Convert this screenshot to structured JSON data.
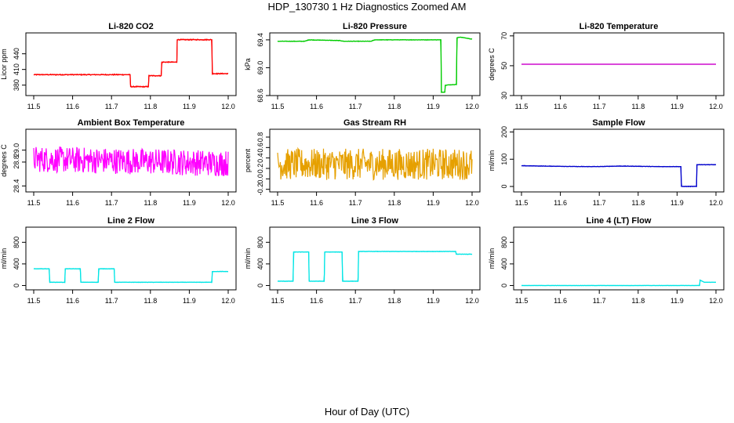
{
  "title": "HDP_130730  1 Hz Diagnostics Zoomed AM",
  "xlabel": "Hour of Day (UTC)",
  "chart_data": [
    {
      "type": "line",
      "title": "Li-820 CO2",
      "ylabel": "Licor ppm",
      "xlim": [
        11.5,
        12.0
      ],
      "ylim": [
        360,
        480
      ],
      "xticks": [
        "11.5",
        "11.6",
        "11.7",
        "11.8",
        "11.9",
        "12.0"
      ],
      "yticks": [
        "380",
        "410",
        "440"
      ],
      "ytick_values": [
        380,
        410,
        440
      ],
      "color": "#ff0000",
      "noise": 1,
      "series": [
        {
          "x": [
            11.5,
            11.748,
            11.749,
            11.795,
            11.796,
            11.828,
            11.829,
            11.868,
            11.869,
            11.958,
            11.959,
            12.0
          ],
          "y": [
            400,
            400,
            377,
            377,
            398,
            398,
            424,
            424,
            467,
            467,
            402,
            402
          ]
        }
      ]
    },
    {
      "type": "line",
      "title": "Li-820 Pressure",
      "ylabel": "kPa",
      "xlim": [
        11.5,
        12.0
      ],
      "ylim": [
        68.6,
        69.5
      ],
      "xticks": [
        "11.5",
        "11.6",
        "11.7",
        "11.8",
        "11.9",
        "12.0"
      ],
      "yticks": [
        "68.6",
        "69.0",
        "69.4"
      ],
      "ytick_values": [
        68.6,
        69.0,
        69.4
      ],
      "color": "#00cc00",
      "noise": 0.004,
      "series": [
        {
          "x": [
            11.5,
            11.57,
            11.58,
            11.66,
            11.67,
            11.74,
            11.75,
            11.92,
            11.921,
            11.93,
            11.931,
            11.96,
            11.961,
            11.97,
            12.0
          ],
          "y": [
            69.38,
            69.38,
            69.4,
            69.39,
            69.38,
            69.38,
            69.4,
            69.4,
            68.65,
            68.65,
            68.75,
            68.76,
            69.43,
            69.44,
            69.41
          ]
        }
      ]
    },
    {
      "type": "line",
      "title": "Li-820 Temperature",
      "ylabel": "degrees C",
      "xlim": [
        11.5,
        12.0
      ],
      "ylim": [
        30,
        72
      ],
      "xticks": [
        "11.5",
        "11.6",
        "11.7",
        "11.8",
        "11.9",
        "12.0"
      ],
      "yticks": [
        "30",
        "50",
        "70"
      ],
      "ytick_values": [
        30,
        50,
        70
      ],
      "color": "#cc00cc",
      "noise": 0,
      "series": [
        {
          "x": [
            11.5,
            12.0
          ],
          "y": [
            51,
            51
          ]
        }
      ]
    },
    {
      "type": "line",
      "title": "Ambient Box Temperature",
      "ylabel": "degrees C",
      "xlim": [
        11.5,
        12.0
      ],
      "ylim": [
        28.3,
        29.35
      ],
      "xticks": [
        "11.5",
        "11.6",
        "11.7",
        "11.8",
        "11.9",
        "12.0"
      ],
      "yticks": [
        "28.4",
        "28.8",
        "29.0"
      ],
      "ytick_values": [
        28.4,
        28.8,
        29.0
      ],
      "color": "#ff00ff",
      "noise": 0.22,
      "series": [
        {
          "x": [
            11.5,
            12.0
          ],
          "y": [
            28.85,
            28.78
          ]
        }
      ]
    },
    {
      "type": "line",
      "title": "Gas Stream RH",
      "ylabel": "percent",
      "xlim": [
        11.5,
        12.0
      ],
      "ylim": [
        -0.25,
        0.95
      ],
      "xticks": [
        "11.5",
        "11.6",
        "11.7",
        "11.8",
        "11.9",
        "12.0"
      ],
      "yticks": [
        "-0.2",
        "0.0",
        "0.2",
        "0.4",
        "0.6",
        "0.8"
      ],
      "ytick_values": [
        -0.2,
        0.0,
        0.2,
        0.4,
        0.6,
        0.8
      ],
      "color": "#e6a000",
      "noise": 0.3,
      "series": [
        {
          "x": [
            11.5,
            12.0
          ],
          "y": [
            0.28,
            0.28
          ]
        }
      ]
    },
    {
      "type": "line",
      "title": "Sample Flow",
      "ylabel": "ml/min",
      "xlim": [
        11.5,
        12.0
      ],
      "ylim": [
        -20,
        210
      ],
      "xticks": [
        "11.5",
        "11.6",
        "11.7",
        "11.8",
        "11.9",
        "12.0"
      ],
      "yticks": [
        "0",
        "100",
        "200"
      ],
      "ytick_values": [
        0,
        100,
        200
      ],
      "color": "#0000cc",
      "noise": 1,
      "series": [
        {
          "x": [
            11.5,
            11.55,
            11.6,
            11.65,
            11.7,
            11.75,
            11.8,
            11.85,
            11.91,
            11.911,
            11.95,
            11.951,
            12.0
          ],
          "y": [
            76,
            75,
            74,
            73,
            73,
            75,
            74,
            73,
            73,
            0,
            0,
            80,
            80
          ]
        }
      ]
    },
    {
      "type": "line",
      "title": "Line 2 Flow",
      "ylabel": "ml/min",
      "xlim": [
        11.5,
        12.0
      ],
      "ylim": [
        -80,
        1080
      ],
      "xticks": [
        "11.5",
        "11.6",
        "11.7",
        "11.8",
        "11.9",
        "12.0"
      ],
      "yticks": [
        "0",
        "400",
        "800"
      ],
      "ytick_values": [
        0,
        400,
        800
      ],
      "color": "#00e5e5",
      "noise": 4,
      "series": [
        {
          "x": [
            11.5,
            11.54,
            11.541,
            11.58,
            11.581,
            11.62,
            11.621,
            11.666,
            11.667,
            11.707,
            11.708,
            11.958,
            11.959,
            12.0
          ],
          "y": [
            310,
            310,
            60,
            60,
            310,
            310,
            60,
            60,
            310,
            310,
            60,
            60,
            260,
            260
          ]
        }
      ]
    },
    {
      "type": "line",
      "title": "Line 3 Flow",
      "ylabel": "ml/min",
      "xlim": [
        11.5,
        12.0
      ],
      "ylim": [
        -80,
        1080
      ],
      "xticks": [
        "11.5",
        "11.6",
        "11.7",
        "11.8",
        "11.9",
        "12.0"
      ],
      "yticks": [
        "0",
        "400",
        "800"
      ],
      "ytick_values": [
        0,
        400,
        800
      ],
      "color": "#00e5e5",
      "noise": 4,
      "series": [
        {
          "x": [
            11.5,
            11.54,
            11.541,
            11.58,
            11.581,
            11.62,
            11.621,
            11.666,
            11.667,
            11.707,
            11.708,
            11.958,
            11.959,
            12.0
          ],
          "y": [
            80,
            80,
            620,
            620,
            80,
            80,
            620,
            620,
            80,
            80,
            630,
            630,
            580,
            580
          ]
        }
      ]
    },
    {
      "type": "line",
      "title": "Line 4 (LT) Flow",
      "ylabel": "ml/min",
      "xlim": [
        11.5,
        12.0
      ],
      "ylim": [
        -80,
        1080
      ],
      "xticks": [
        "11.5",
        "11.6",
        "11.7",
        "11.8",
        "11.9",
        "12.0"
      ],
      "yticks": [
        "0",
        "400",
        "800"
      ],
      "ytick_values": [
        0,
        400,
        800
      ],
      "color": "#00e5e5",
      "noise": 2,
      "series": [
        {
          "x": [
            11.5,
            11.958,
            11.959,
            11.97,
            12.0
          ],
          "y": [
            0,
            0,
            100,
            60,
            60
          ]
        }
      ]
    }
  ]
}
